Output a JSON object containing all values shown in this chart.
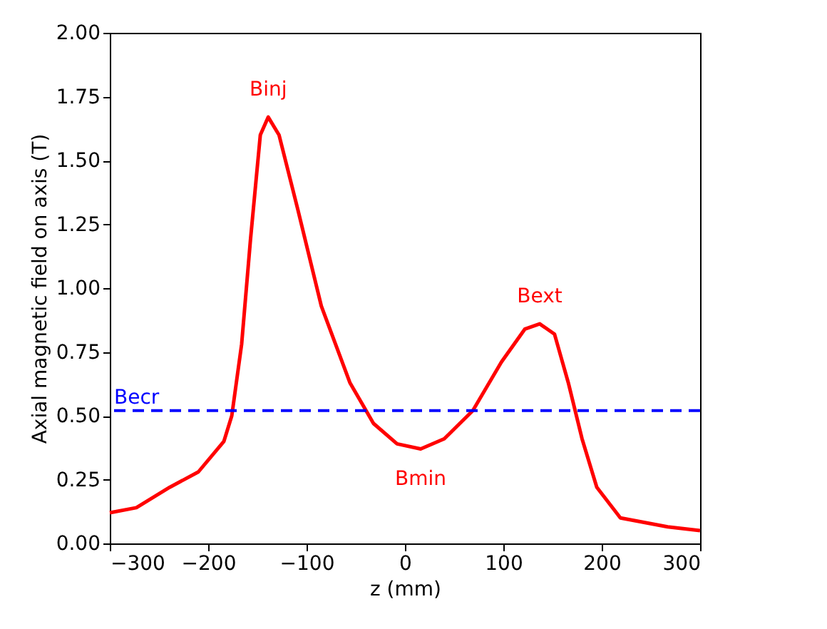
{
  "chart_data": {
    "type": "line",
    "xlabel": "z (mm)",
    "ylabel": "Axial magnetic field on axis (T)",
    "xlim": [
      -300,
      300
    ],
    "xticks": [
      -300,
      -200,
      -100,
      0,
      100,
      200,
      300
    ],
    "ylim": [
      0,
      2
    ],
    "yticks": [
      {
        "value": 0,
        "label": "0.00"
      },
      {
        "value": 0.25,
        "label": "0.25"
      },
      {
        "value": 0.5,
        "label": "0.50"
      },
      {
        "value": 0.75,
        "label": "0.75"
      },
      {
        "value": 1,
        "label": "1.00"
      },
      {
        "value": 1.25,
        "label": "1.25"
      },
      {
        "value": 1.5,
        "label": "1.50"
      },
      {
        "value": 1.75,
        "label": "1.75"
      },
      {
        "value": 2,
        "label": "2.00"
      }
    ],
    "grid": false,
    "line_style": "solid",
    "series": [
      {
        "color": "#ff0000",
        "x": [
          -300,
          -273,
          -239,
          -210,
          -184,
          -176,
          -166,
          -157,
          -147,
          -139,
          -128,
          -109,
          -85,
          -56,
          -32,
          -8,
          16,
          40,
          69,
          98,
          122,
          137,
          152,
          166,
          180,
          195,
          219,
          267,
          300
        ],
        "values": [
          0.12,
          0.14,
          0.22,
          0.28,
          0.4,
          0.5,
          0.78,
          1.19,
          1.6,
          1.67,
          1.6,
          1.31,
          0.93,
          0.63,
          0.47,
          0.39,
          0.37,
          0.41,
          0.52,
          0.71,
          0.84,
          0.86,
          0.82,
          0.63,
          0.41,
          0.22,
          0.1,
          0.065,
          0.05
        ]
      }
    ],
    "ref_lines": [
      {
        "axis": "y",
        "value": 0.52,
        "label": "Becr",
        "color": "#0000ff",
        "line_style": "dashed"
      }
    ],
    "annotations": [
      {
        "text": "Binj",
        "x": -139,
        "y": 1.67
      },
      {
        "text": "Bext",
        "x": 137,
        "y": 0.86
      },
      {
        "text": "Bmin",
        "x": 16,
        "y": 0.37
      }
    ]
  }
}
